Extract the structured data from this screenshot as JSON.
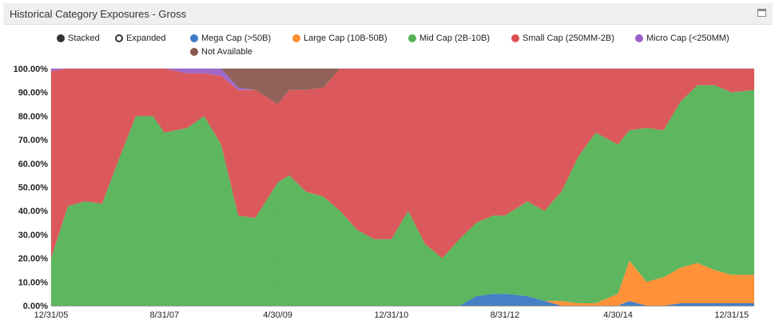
{
  "panel": {
    "title": "Historical Category Exposures - Gross"
  },
  "legend": {
    "modes": [
      {
        "label": "Stacked",
        "selected": true
      },
      {
        "label": "Expanded",
        "selected": false
      }
    ],
    "series": [
      {
        "label": "Mega Cap (>50B)",
        "color": "#3b79c2"
      },
      {
        "label": "Large Cap (10B-50B)",
        "color": "#ff8c2e"
      },
      {
        "label": "Mid Cap (2B-10B)",
        "color": "#55b255"
      },
      {
        "label": "Small Cap (250MM-2B)",
        "color": "#d95053"
      },
      {
        "label": "Micro Cap (<250MM)",
        "color": "#9a60c8"
      },
      {
        "label": "Not Available",
        "color": "#8a5a50"
      }
    ]
  },
  "chart_data": {
    "type": "area",
    "stacked": true,
    "ylim": [
      0,
      100
    ],
    "yticks": [
      "0.00%",
      "10.00%",
      "20.00%",
      "30.00%",
      "40.00%",
      "50.00%",
      "60.00%",
      "70.00%",
      "80.00%",
      "90.00%",
      "100.00%"
    ],
    "xticks": [
      "12/31/05",
      "8/31/07",
      "4/30/09",
      "12/31/10",
      "8/31/12",
      "4/30/14",
      "12/31/15"
    ],
    "x_range": [
      "12/31/05",
      "04/30/16"
    ],
    "grid": true,
    "legend_position": "top",
    "dates": [
      "12/31/05",
      "03/31/06",
      "06/30/06",
      "09/30/06",
      "12/31/06",
      "03/31/07",
      "06/30/07",
      "08/31/07",
      "12/31/07",
      "03/31/08",
      "06/30/08",
      "09/30/08",
      "12/31/08",
      "04/30/09",
      "06/30/09",
      "09/30/09",
      "12/31/09",
      "03/31/10",
      "06/30/10",
      "09/30/10",
      "12/31/10",
      "03/31/11",
      "06/30/11",
      "09/30/11",
      "12/31/11",
      "03/31/12",
      "06/30/12",
      "08/31/12",
      "12/31/12",
      "03/31/13",
      "06/30/13",
      "09/30/13",
      "12/31/13",
      "04/30/14",
      "06/30/14",
      "09/30/14",
      "12/31/14",
      "03/31/15",
      "06/30/15",
      "09/30/15",
      "12/31/15",
      "04/30/16"
    ],
    "series": [
      {
        "name": "Mega Cap (>50B)",
        "values": [
          0,
          0,
          0,
          0,
          0,
          0,
          0,
          0,
          0,
          0,
          0,
          0,
          0,
          0,
          0,
          0,
          0,
          0,
          0,
          0,
          0,
          0,
          0,
          0,
          0,
          4,
          5,
          5,
          4,
          2,
          0,
          0,
          0,
          0,
          2,
          0,
          0,
          1,
          1,
          1,
          1,
          1
        ]
      },
      {
        "name": "Large Cap (10B-50B)",
        "values": [
          0,
          0,
          0,
          0,
          0,
          0,
          0,
          0,
          0,
          0,
          0,
          0,
          0,
          0,
          0,
          0,
          0,
          0,
          0,
          0,
          0,
          0,
          0,
          0,
          0,
          0,
          0,
          0,
          0,
          0,
          2,
          1,
          1,
          5,
          17,
          10,
          12,
          15,
          17,
          14,
          12,
          12
        ]
      },
      {
        "name": "Mid Cap (2B-10B)",
        "values": [
          20,
          42,
          44,
          43,
          62,
          80,
          80,
          73,
          75,
          80,
          68,
          38,
          37,
          52,
          55,
          48,
          46,
          40,
          32,
          28,
          28,
          40,
          26,
          20,
          28,
          31,
          33,
          33,
          40,
          38,
          46,
          62,
          72,
          63,
          55,
          65,
          62,
          70,
          75,
          78,
          77,
          78
        ]
      },
      {
        "name": "Small Cap (250MM-2B)",
        "values": [
          79,
          58,
          56,
          57,
          38,
          20,
          20,
          27,
          23,
          18,
          29,
          53,
          54,
          33,
          36,
          43,
          46,
          60,
          68,
          72,
          72,
          60,
          74,
          80,
          72,
          65,
          62,
          62,
          56,
          60,
          52,
          37,
          27,
          32,
          26,
          25,
          26,
          14,
          7,
          7,
          10,
          9
        ]
      },
      {
        "name": "Micro Cap (<250MM)",
        "values": [
          1,
          0,
          0,
          0,
          0,
          0,
          0,
          0,
          2,
          2,
          3,
          1,
          0,
          0,
          0,
          0,
          0,
          0,
          0,
          0,
          0,
          0,
          0,
          0,
          0,
          0,
          0,
          0,
          0,
          0,
          0,
          0,
          0,
          0,
          0,
          0,
          0,
          0,
          0,
          0,
          0,
          0
        ]
      },
      {
        "name": "Not Available",
        "values": [
          0,
          0,
          0,
          0,
          0,
          0,
          0,
          0,
          0,
          0,
          0,
          8,
          9,
          15,
          9,
          9,
          8,
          0,
          0,
          0,
          0,
          0,
          0,
          0,
          0,
          0,
          0,
          0,
          0,
          0,
          0,
          0,
          0,
          0,
          0,
          0,
          0,
          0,
          0,
          0,
          0,
          0
        ]
      }
    ]
  }
}
